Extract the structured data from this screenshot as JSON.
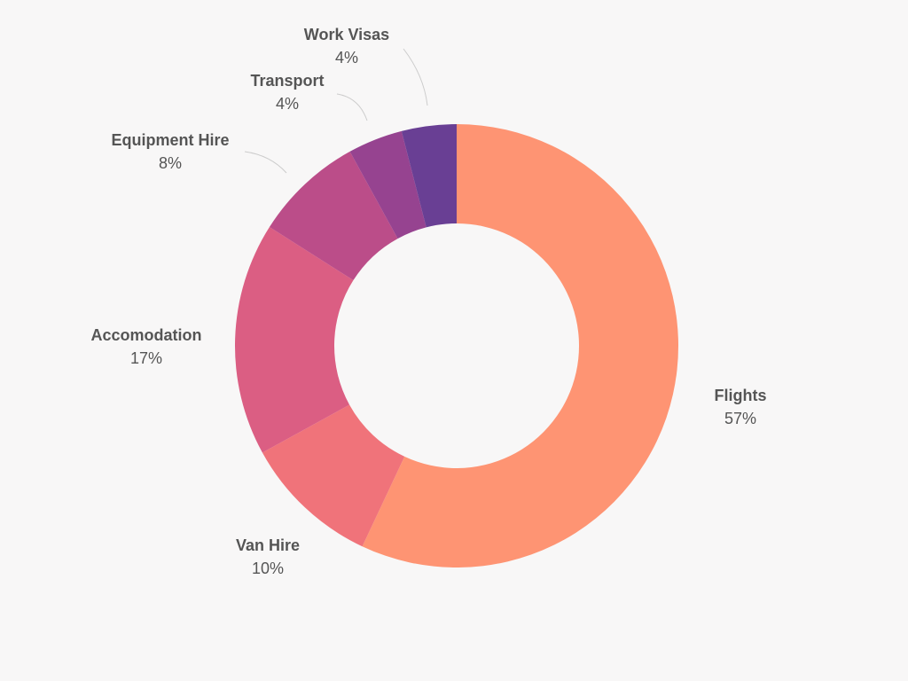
{
  "chart_data": {
    "type": "pie",
    "variant": "donut",
    "legend": "none",
    "slices": [
      {
        "label": "Flights",
        "value": 57,
        "display": "57%",
        "color": "#fe9473"
      },
      {
        "label": "Van Hire",
        "value": 10,
        "display": "10%",
        "color": "#f0737a"
      },
      {
        "label": "Accomodation",
        "value": 17,
        "display": "17%",
        "color": "#db5e83"
      },
      {
        "label": "Equipment Hire",
        "value": 8,
        "display": "8%",
        "color": "#bb4d89"
      },
      {
        "label": "Transport",
        "value": 4,
        "display": "4%",
        "color": "#964390"
      },
      {
        "label": "Work Visas",
        "value": 4,
        "display": "4%",
        "color": "#693f94"
      }
    ],
    "colors": {
      "background": "#f8f7f7",
      "label_text": "#555555",
      "leader_line": "#cccccc"
    }
  }
}
